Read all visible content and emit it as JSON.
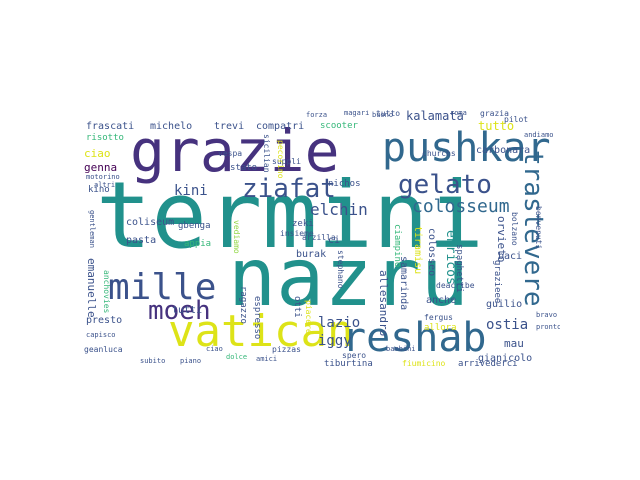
{
  "palette": {
    "navy": "#440154",
    "indigo": "#3b528b",
    "blue": "#31688e",
    "teal": "#21918c",
    "green": "#35b779",
    "lime": "#90d743",
    "yellow": "#dde318",
    "slate": "#46327e"
  },
  "cloud": {
    "words": {
      "termini": "termini",
      "nazru": "nazru",
      "grazie": "grazie",
      "pushkar": "pushkar",
      "vatican": "vatican",
      "reshab": "reshab",
      "mille": "mille",
      "moeh": "moeh",
      "ziafat": "ziafat",
      "gelato": "gelato",
      "colosseum": "colosseum",
      "trastevere": "trastevere",
      "elchin": "elchin",
      "kini": "kini",
      "kalamata": "kalamata",
      "tutto": "tutto",
      "frascati": "frascati",
      "michelo": "michelo",
      "trevi": "trevi",
      "compatri": "compatri",
      "scooter": "scooter",
      "risotto": "risotto",
      "ciao": "ciao",
      "genna": "genna",
      "kino": "kino",
      "coliseum": "coliseum",
      "pasta": "pasta",
      "emanuelle": "emanuelle",
      "presto": "presto",
      "tutti": "tutti",
      "lazio": "lazio",
      "iggy": "iggy",
      "ostia": "ostia",
      "mau": "mau",
      "gianicolo": "gianicolo",
      "guilio": "guilio",
      "carbonara": "carbonara",
      "nichos": "nichos",
      "zeki": "zeki",
      "burak": "burak",
      "orvieto": "orvieto",
      "tiramisu": "tiramisu",
      "colosseo": "colosseo",
      "spaghetti": "spaghetti",
      "enricos": "enricos",
      "samarinda": "samarinda",
      "allesandro": "allesandro",
      "tiburtina": "tiburtina",
      "arrivederci": "arrivederci",
      "fiumicino": "fiumicino",
      "anche": "anche",
      "allora": "allora",
      "vespa": "vespa",
      "supplì": "suppli",
      "stato": "stato",
      "gbenga": "gbenga",
      "appia": "appia",
      "vediamo": "vediamo",
      "spero": "spero",
      "geanluca": "geanluca",
      "pizzas": "pizzas",
      "grazieee": "grazieee",
      "fergus": "fergus",
      "deacribe": "deacribe",
      "bolzano": "bolzano",
      "baci": "baci",
      "pilot": "pilot",
      "churchs": "churchs",
      "insieme": "insieme",
      "ciampino": "ciampino",
      "grazia": "grazia",
      "arzilla": "arzilla",
      "anchovies": "anchovies",
      "stephano": "stephano",
      "otti": "otti",
      "piacere": "piacere",
      "ci": "ci",
      "tutto2": "tutto",
      "espresso": "espresso",
      "sicilian": "sicilian",
      "motorino": "motorino",
      "altri": "altri",
      "roma": "roma",
      "bambini": "bambini",
      "ragazzo": "ragazzo",
      "ciao2": "ciao",
      "dolce": "dolce",
      "amici": "amici",
      "buono": "buono",
      "forza": "forza",
      "magari": "magari",
      "bravo": "bravo",
      "pronto": "pronto",
      "subito": "subito",
      "piano": "piano",
      "andiamo": "andiamo",
      "benvenuti": "benvenuti",
      "gentleman": "gentleman",
      "pecorino": "pecorino",
      "capisco": "capisco"
    }
  }
}
